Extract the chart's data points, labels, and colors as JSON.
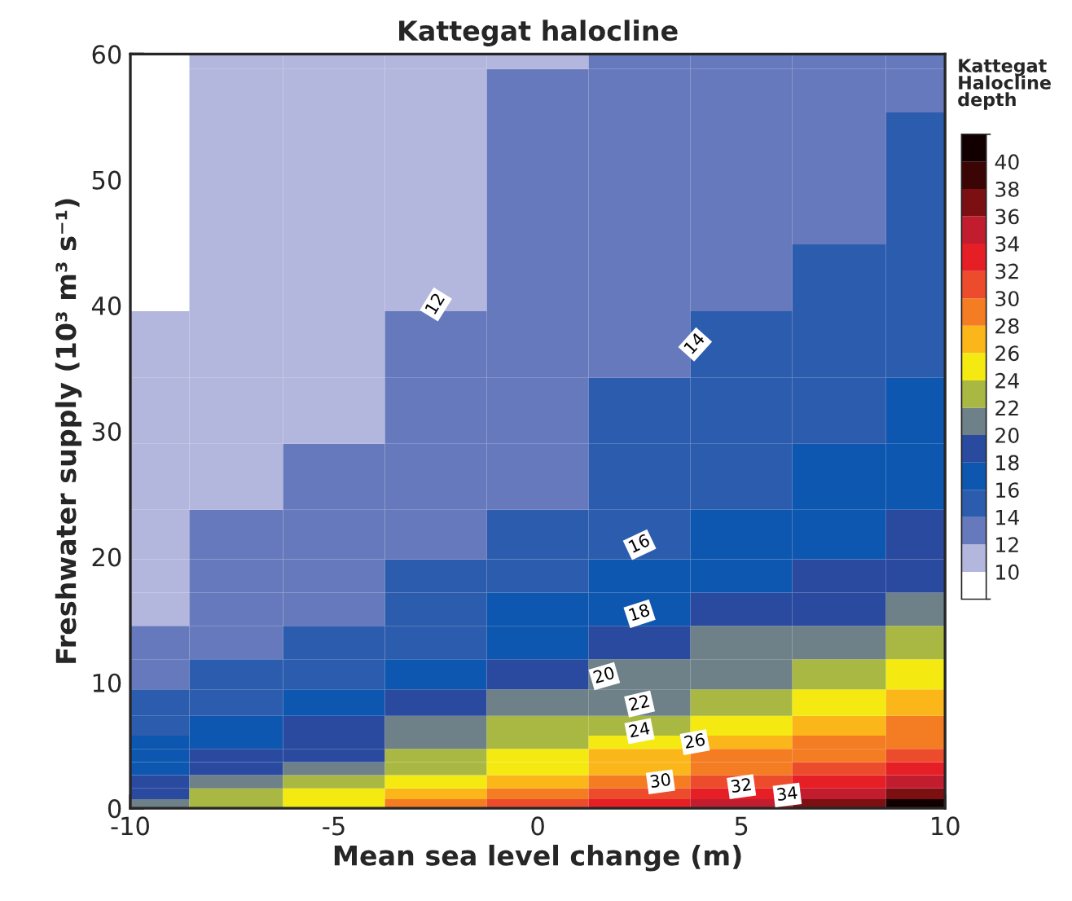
{
  "chart_data": {
    "type": "heatmap",
    "title": "Kattegat halocline",
    "xlabel": "Mean sea level change (m)",
    "ylabel": "Freshwater supply (10³ m³ s⁻¹)",
    "clabel": "Kattegat\nHalocline\ndepth",
    "x": [
      -9.6,
      -7.5,
      -5,
      -2.5,
      0,
      2.5,
      5,
      7.5,
      9.6
    ],
    "y": [
      0.4,
      1.05,
      2.1,
      3.15,
      4.2,
      5.25,
      6.3,
      8.4,
      10.5,
      13.2,
      15.8,
      18.5,
      21.1,
      26.4,
      31.6,
      36.9,
      42.2,
      47.5,
      52.7,
      58,
      59.6
    ],
    "cells": [
      [
        21.6,
        23.7,
        25.8,
        28.3,
        30.7,
        32.8,
        34.8,
        37.0,
        41.0
      ],
      [
        19.5,
        22.4,
        24.3,
        26.7,
        29.0,
        31.2,
        33.1,
        35.1,
        37.25
      ],
      [
        18.25,
        20.25,
        23.0,
        25.1,
        27.4,
        29.65,
        31.35,
        33.25,
        35.1
      ],
      [
        17.5,
        19.1,
        21.6,
        23.65,
        25.85,
        27.85,
        29.65,
        31.5,
        33.3
      ],
      [
        16.8,
        18.1,
        19.8,
        22.5,
        24.3,
        26.4,
        28.0,
        29.85,
        31.5
      ],
      [
        16.1,
        17.4,
        19.0,
        21.3,
        23.1,
        25.05,
        26.8,
        28.3,
        29.85
      ],
      [
        15.5,
        16.7,
        18.2,
        20.2,
        22.0,
        23.8,
        25.6,
        27.1,
        28.55
      ],
      [
        14.35,
        15.5,
        16.7,
        18.8,
        20.4,
        21.9,
        23.4,
        24.95,
        26.3
      ],
      [
        13.5,
        14.6,
        15.6,
        17.5,
        19.15,
        20.45,
        21.8,
        23.15,
        24.45
      ],
      [
        12.7,
        13.75,
        14.7,
        15.95,
        17.75,
        19.05,
        20.2,
        21.4,
        22.6
      ],
      [
        11.95,
        13.3,
        13.9,
        15.1,
        16.5,
        17.85,
        19.0,
        19.95,
        21.15
      ],
      [
        11.7,
        12.8,
        13.6,
        14.3,
        15.6,
        16.9,
        17.9,
        18.95,
        19.85
      ],
      [
        11.5,
        12.3,
        13.25,
        13.8,
        14.95,
        15.95,
        17.15,
        17.95,
        18.9
      ],
      [
        11.0,
        11.8,
        12.55,
        13.25,
        13.9,
        14.95,
        15.8,
        16.65,
        17.4
      ],
      [
        10.6,
        11.45,
        11.95,
        12.7,
        13.6,
        14.0,
        15.0,
        15.7,
        16.25
      ],
      [
        10.1,
        11.2,
        11.75,
        12.15,
        13.3,
        13.7,
        14.25,
        15.05,
        15.6
      ],
      [
        9.8,
        11.05,
        11.6,
        11.9,
        12.95,
        13.45,
        13.9,
        14.45,
        15.1
      ],
      [
        9.6,
        11.0,
        11.5,
        11.8,
        12.65,
        13.2,
        13.6,
        13.9,
        14.6
      ],
      [
        9.6,
        10.9,
        11.4,
        11.7,
        12.35,
        12.95,
        13.4,
        13.7,
        14.1
      ],
      [
        9.8,
        10.75,
        11.25,
        11.6,
        12.05,
        12.7,
        13.2,
        13.55,
        13.9
      ],
      [
        9.86,
        10.69,
        11.19,
        11.56,
        11.95,
        12.6,
        13.12,
        13.5,
        13.82
      ]
    ],
    "colors": [
      "#ffffff",
      "#b3b6dd",
      "#6779bd",
      "#2c5cad",
      "#0d57b0",
      "#2a4aa0",
      "#6e8088",
      "#a9b842",
      "#f4ea12",
      "#fbb61a",
      "#f47c22",
      "#ec4b2c",
      "#e61e26",
      "#c11d2e",
      "#7b0f12",
      "#3c0505",
      "#120000"
    ],
    "clim": [
      8,
      42
    ],
    "cticks": [
      10,
      12,
      14,
      16,
      18,
      20,
      22,
      24,
      26,
      28,
      30,
      32,
      34,
      36,
      38,
      40
    ],
    "xlim": [
      -10,
      10
    ],
    "xticks": [
      -10,
      -5,
      0,
      5,
      10
    ],
    "ylim": [
      0,
      60
    ],
    "yticks": [
      0,
      10,
      20,
      30,
      40,
      50,
      60
    ],
    "annotations": [
      "12",
      "14",
      "16",
      "18",
      "20",
      "22",
      "24",
      "26",
      "30",
      "32",
      "34"
    ]
  }
}
